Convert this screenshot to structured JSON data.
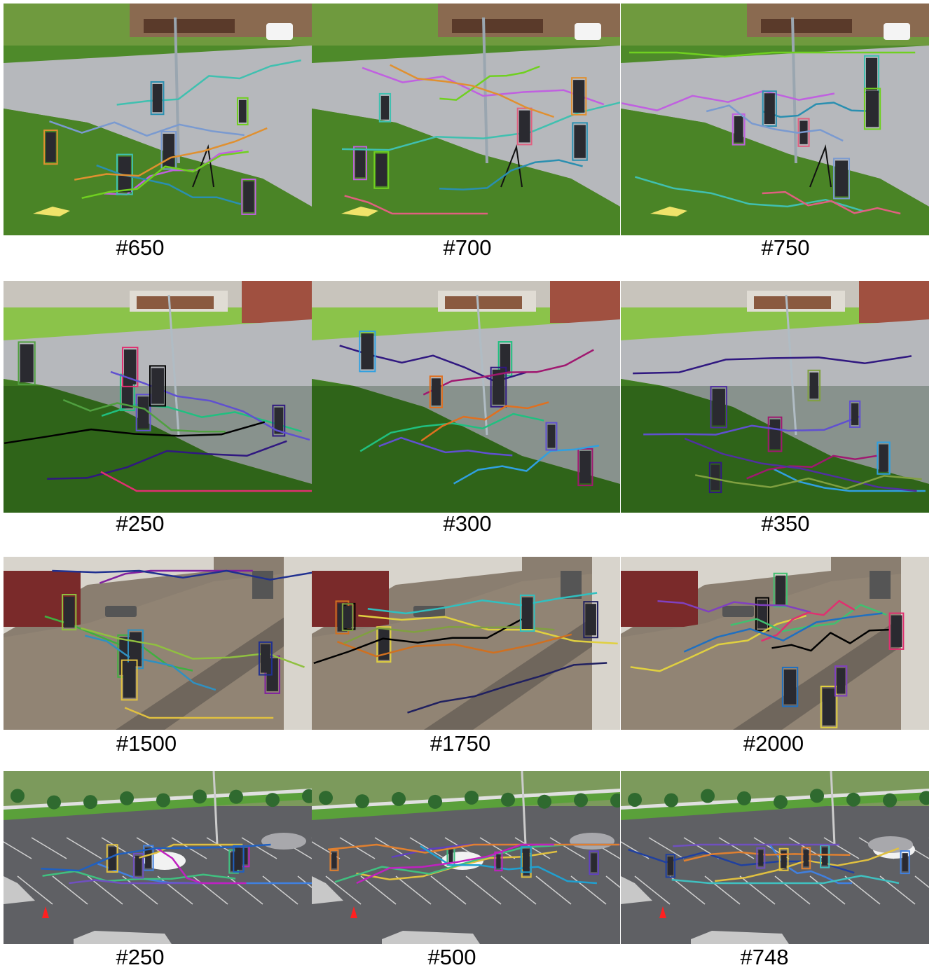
{
  "rows": [
    {
      "scene": "campus-lawn",
      "panels": [
        {
          "caption": "#650",
          "tracks": [
            "#c060e0",
            "#7a9ad0",
            "#40c0b0",
            "#2a8fb0",
            "#70d020",
            "#e09030"
          ]
        },
        {
          "caption": "#700",
          "tracks": [
            "#c060e0",
            "#40c0b0",
            "#2a8fb0",
            "#70d020",
            "#e06080",
            "#e09030"
          ]
        },
        {
          "caption": "#750",
          "tracks": [
            "#c060e0",
            "#40c0b0",
            "#2a8fb0",
            "#70d020",
            "#e06080",
            "#7a9ad0"
          ]
        }
      ]
    },
    {
      "scene": "campus-path",
      "panels": [
        {
          "caption": "#250",
          "tracks": [
            "#20c080",
            "#301880",
            "#e03070",
            "#6050d0",
            "#000000",
            "#50a040"
          ]
        },
        {
          "caption": "#300",
          "tracks": [
            "#20c080",
            "#301880",
            "#a01870",
            "#30a0e0",
            "#e07020",
            "#6050d0"
          ]
        },
        {
          "caption": "#350",
          "tracks": [
            "#30a0e0",
            "#301880",
            "#a01870",
            "#6050d0",
            "#5030a0",
            "#80a040"
          ]
        }
      ]
    },
    {
      "scene": "shopping-street",
      "panels": [
        {
          "caption": "#1500",
          "tracks": [
            "#8020a0",
            "#40b040",
            "#3090c0",
            "#e0c040",
            "#90c040",
            "#203090"
          ]
        },
        {
          "caption": "#1750",
          "tracks": [
            "#e0d040",
            "#d07020",
            "#202060",
            "#000000",
            "#80a040",
            "#30c0c0"
          ]
        },
        {
          "caption": "#2000",
          "tracks": [
            "#000000",
            "#e0d040",
            "#40c070",
            "#8040c0",
            "#e03070",
            "#2070c0"
          ]
        }
      ]
    },
    {
      "scene": "parking-lot",
      "panels": [
        {
          "caption": "#250",
          "tracks": [
            "#4080e0",
            "#40c080",
            "#7050c0",
            "#e0c040",
            "#c020c0",
            "#2060c0"
          ]
        },
        {
          "caption": "#500",
          "tracks": [
            "#e0c040",
            "#40c080",
            "#6040c0",
            "#e08030",
            "#20a0d0",
            "#c020c0"
          ]
        },
        {
          "caption": "#748",
          "tracks": [
            "#4080e0",
            "#2040a0",
            "#e0c040",
            "#40c0c0",
            "#e08030",
            "#7050c0"
          ]
        }
      ]
    }
  ],
  "colors": {
    "grass": "#4e8a2a",
    "grass_light": "#8bc34a",
    "pavement": "#b6b8bc",
    "street": "#8a7e70",
    "asphalt": "#5f6064",
    "building": "#8a6a50",
    "wall": "#d8d4cc",
    "sky": "#e8e8ea"
  }
}
